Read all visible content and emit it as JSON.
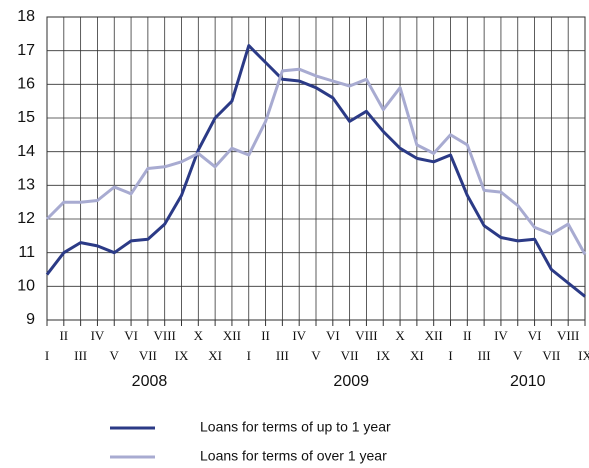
{
  "chart_data": {
    "type": "line",
    "categories": [
      "I",
      "II",
      "III",
      "IV",
      "V",
      "VI",
      "VII",
      "VIII",
      "IX",
      "X",
      "XI",
      "XII",
      "I",
      "II",
      "III",
      "IV",
      "V",
      "VI",
      "VII",
      "VIII",
      "IX",
      "X",
      "XI",
      "XII",
      "I",
      "II",
      "III",
      "IV",
      "V",
      "VI",
      "VII",
      "VIII",
      "IX"
    ],
    "years": [
      "2008",
      "2009",
      "2010"
    ],
    "series": [
      {
        "name": "Loans for terms of up to 1 year",
        "color": "#2b3a86",
        "values": [
          10.35,
          11.0,
          11.3,
          11.2,
          11.0,
          11.35,
          11.4,
          11.85,
          12.7,
          14.05,
          15.0,
          15.5,
          17.15,
          16.65,
          16.15,
          16.1,
          15.9,
          15.6,
          14.9,
          15.2,
          14.6,
          14.1,
          13.8,
          13.7,
          13.9,
          12.7,
          11.8,
          11.45,
          11.35,
          11.4,
          10.5,
          10.1,
          9.7
        ]
      },
      {
        "name": "Loans for terms of over 1 year",
        "color": "#a8abd1",
        "values": [
          12.0,
          12.5,
          12.5,
          12.55,
          12.95,
          12.75,
          13.5,
          13.55,
          13.7,
          13.95,
          13.55,
          14.1,
          13.9,
          14.9,
          16.4,
          16.45,
          16.25,
          16.1,
          15.95,
          16.15,
          15.25,
          15.9,
          14.2,
          13.95,
          14.5,
          14.2,
          12.85,
          12.8,
          12.4,
          11.75,
          11.55,
          11.85,
          10.95
        ]
      }
    ],
    "ylim": [
      9,
      18
    ],
    "yticks": [
      9,
      10,
      11,
      12,
      13,
      14,
      15,
      16,
      17,
      18
    ],
    "grid": true
  }
}
